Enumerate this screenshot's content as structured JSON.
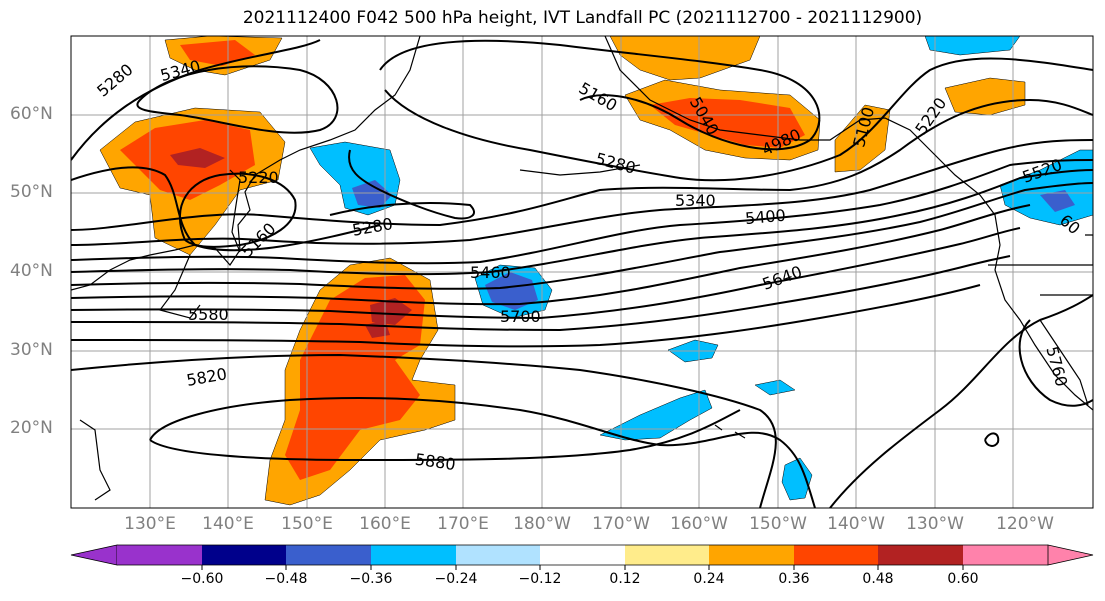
{
  "title": "2021112400 F042 500 hPa height, IVT Landfall PC (2021112700 - 2021112900)",
  "lat_labels": [
    "60°N",
    "50°N",
    "40°N",
    "30°N",
    "20°N"
  ],
  "lon_labels": [
    "130°E",
    "140°E",
    "150°E",
    "160°E",
    "170°E",
    "180°W",
    "170°W",
    "160°W",
    "150°W",
    "140°W",
    "130°W",
    "120°W"
  ],
  "colorbar": {
    "ticks": [
      "−0.60",
      "−0.48",
      "−0.36",
      "−0.24",
      "−0.12",
      "0.12",
      "0.24",
      "0.36",
      "0.48",
      "0.60"
    ],
    "colors": [
      "#9932cc",
      "#00008b",
      "#3a5fcd",
      "#00bfff",
      "#b0e2ff",
      "#ffffff",
      "#ffec8b",
      "#ffa500",
      "#ff4500",
      "#b22222",
      "#ff82ab"
    ]
  },
  "contour_labels": [
    "5280",
    "5340",
    "5220",
    "5160",
    "5280",
    "5160",
    "5040",
    "4980",
    "5100",
    "5220",
    "5520",
    "5280",
    "5340",
    "5400",
    "5460",
    "5640",
    "5580",
    "5700",
    "5820",
    "5880",
    "5760",
    "60"
  ]
}
